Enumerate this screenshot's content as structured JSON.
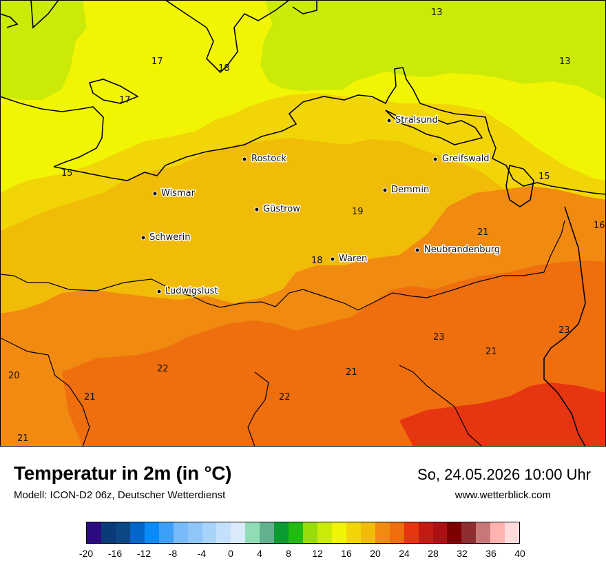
{
  "map": {
    "cities": [
      {
        "name": "Stralsund"
      },
      {
        "name": "Rostock"
      },
      {
        "name": "Greifswald"
      },
      {
        "name": "Wismar"
      },
      {
        "name": "Demmin"
      },
      {
        "name": "Güstrow"
      },
      {
        "name": "Schwerin"
      },
      {
        "name": "Neubrandenburg"
      },
      {
        "name": "Waren"
      },
      {
        "name": "Ludwigslust"
      }
    ],
    "isolines": [
      "13",
      "13",
      "17",
      "18",
      "17",
      "15",
      "15",
      "16",
      "19",
      "21",
      "18",
      "23",
      "23",
      "21",
      "20",
      "22",
      "21",
      "21",
      "22",
      "21"
    ]
  },
  "title": "Temperatur in 2m (in °C)",
  "subtitle": "Modell: ICON-D2 06z, Deutscher Wetterdienst",
  "datetime": "So, 24.05.2026 10:00 Uhr",
  "website": "www.wetterblick.com",
  "colorbar": {
    "colors": [
      "#2c0a82",
      "#0a3a78",
      "#0b4785",
      "#0466c8",
      "#0a8af6",
      "#3ca0f8",
      "#79bbfa",
      "#8fc5f9",
      "#a8d4fa",
      "#c4e1fb",
      "#dbeafb",
      "#8fdcb5",
      "#62b08e",
      "#0c9a32",
      "#22bb12",
      "#98dc09",
      "#ccea08",
      "#f1f504",
      "#f2d506",
      "#f1bc08",
      "#f18a10",
      "#ef6e0e",
      "#e63511",
      "#c21b14",
      "#ac0f14",
      "#7d0000",
      "#8e2e30",
      "#c87779",
      "#ffb3b1",
      "#ffdcdb"
    ],
    "ticks": [
      "-20",
      "-16",
      "-12",
      "-8",
      "-4",
      "0",
      "4",
      "8",
      "12",
      "16",
      "20",
      "24",
      "28",
      "32",
      "36",
      "40"
    ]
  }
}
